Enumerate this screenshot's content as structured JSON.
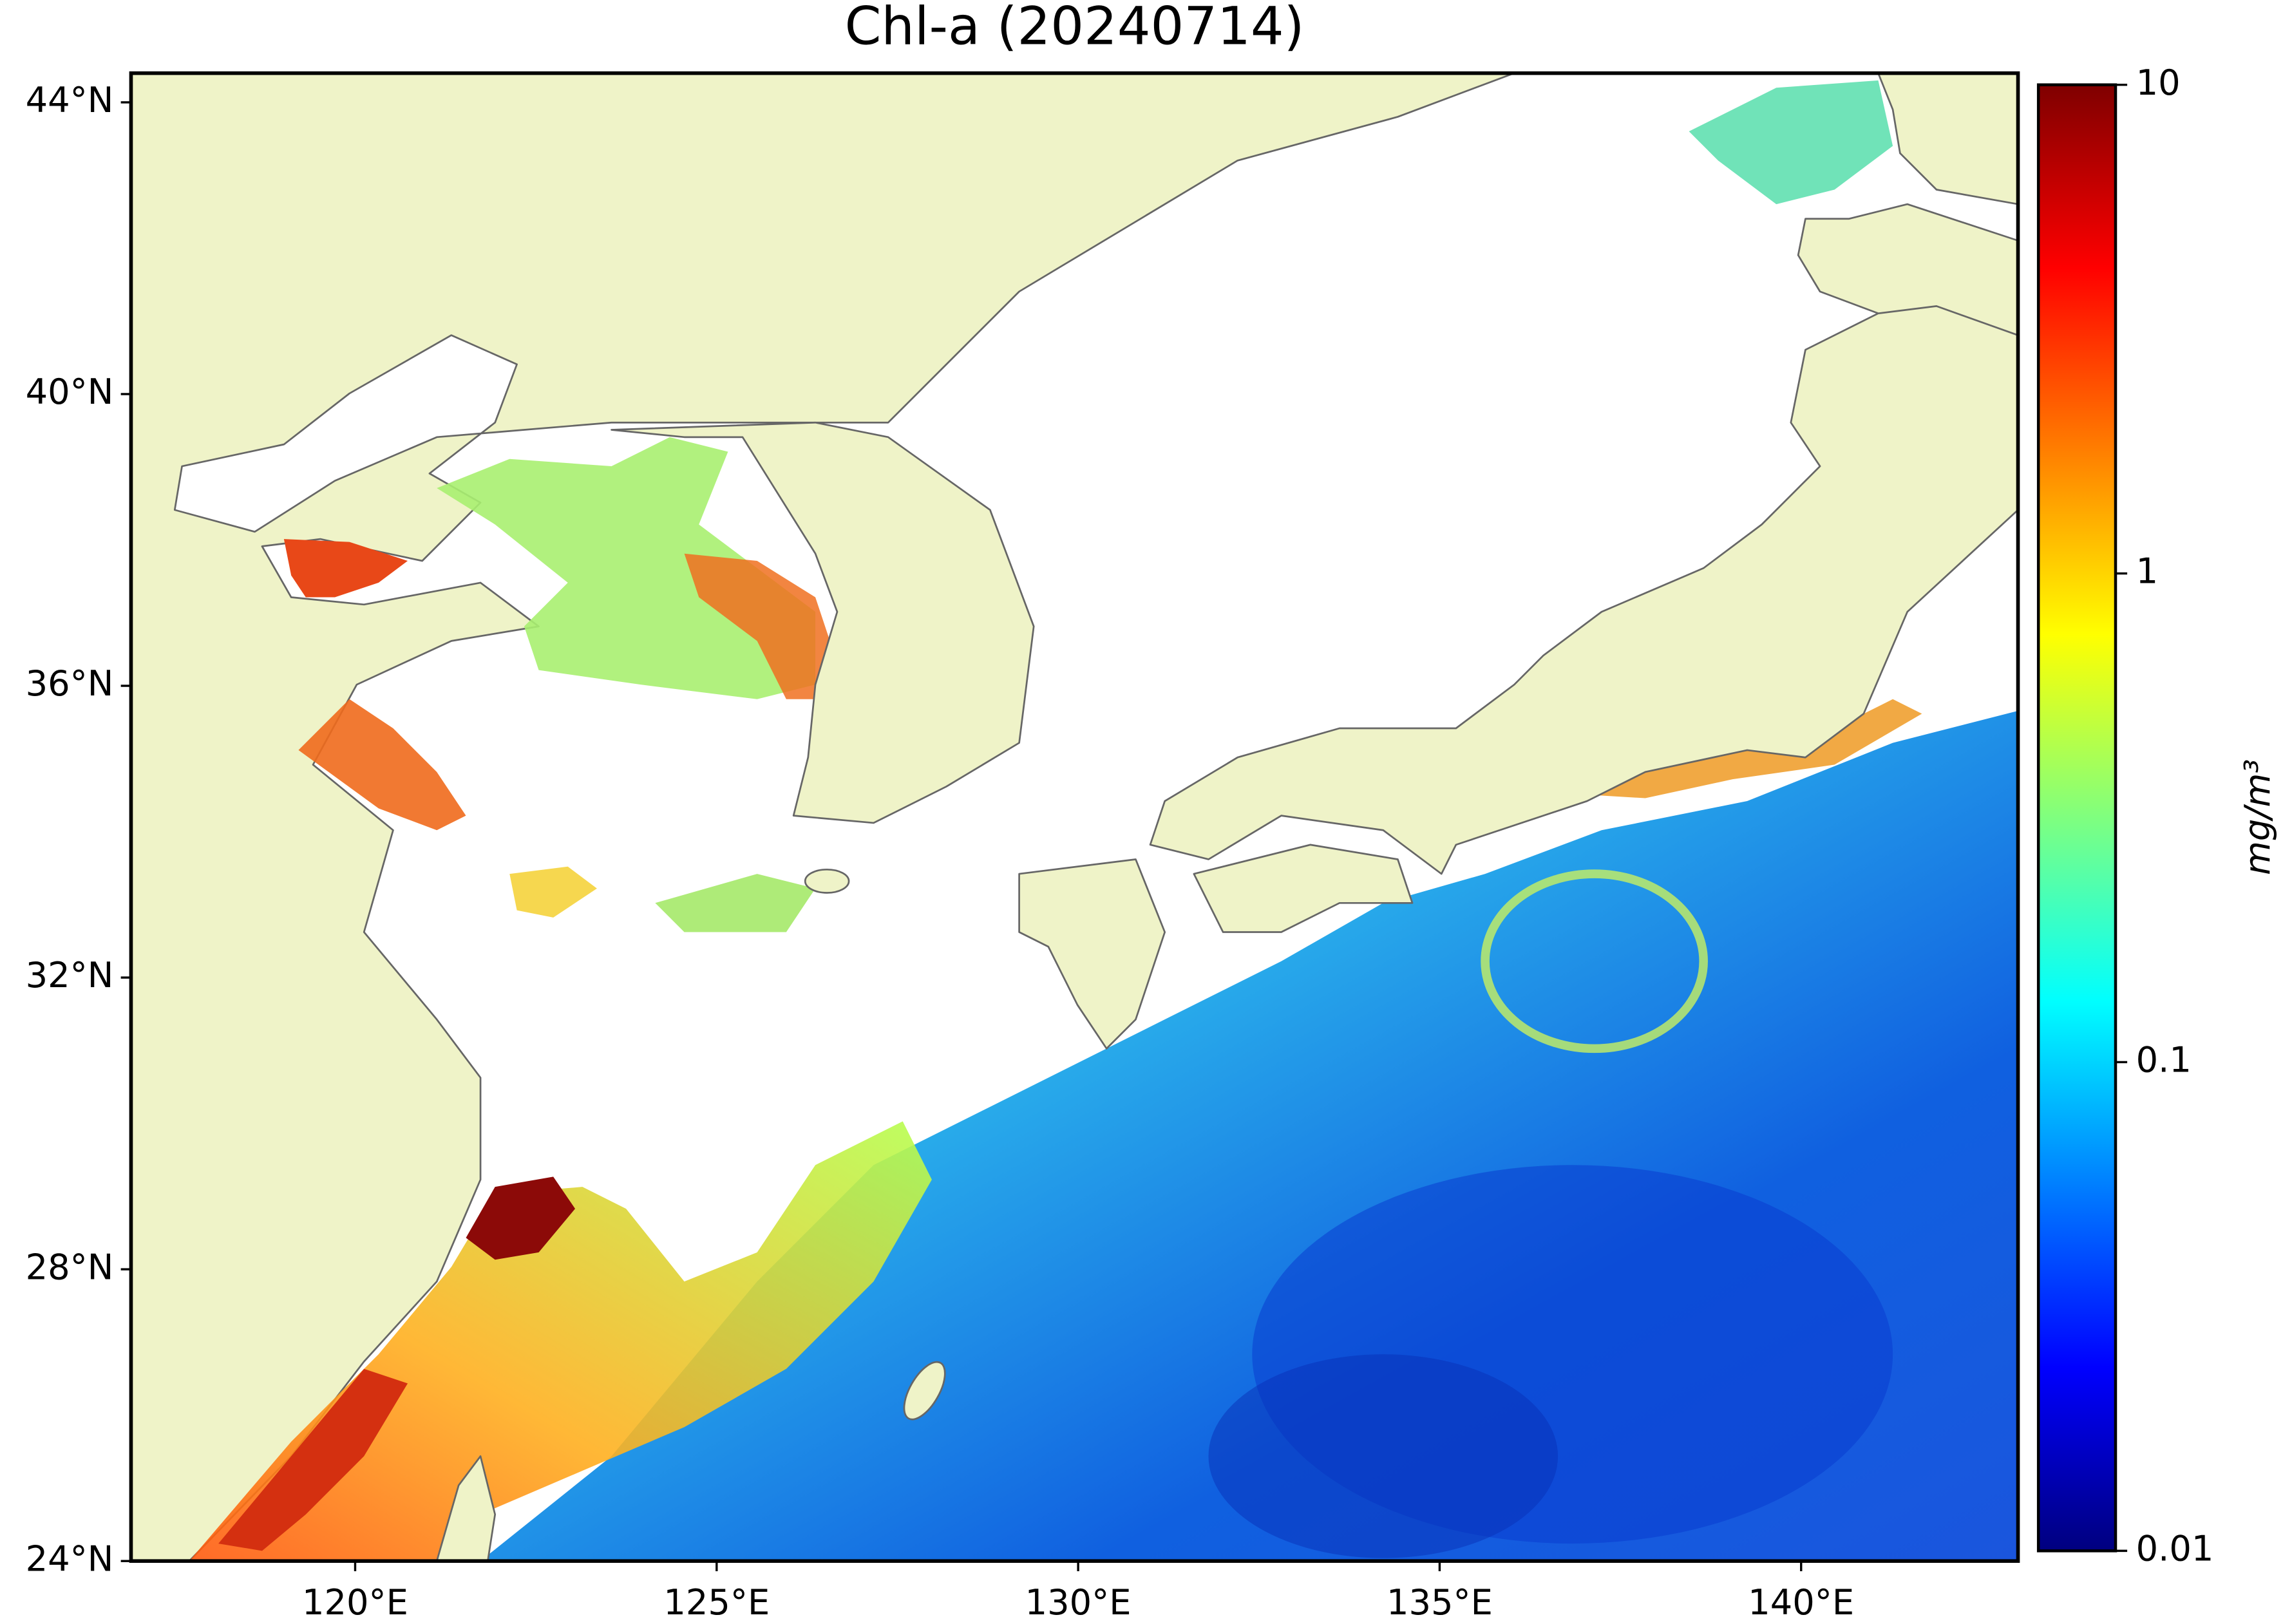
{
  "chart_data": {
    "type": "map",
    "title": "Chl-a (20240714)",
    "xlim": [
      116.9,
      143.0
    ],
    "xticks": [
      {
        "value": 120,
        "label": "120°E"
      },
      {
        "value": 125,
        "label": "125°E"
      },
      {
        "value": 130,
        "label": "130°E"
      },
      {
        "value": 135,
        "label": "135°E"
      },
      {
        "value": 140,
        "label": "140°E"
      }
    ],
    "ylim": [
      24,
      44.4
    ],
    "yticks": [
      {
        "value": 24,
        "label": "24°N"
      },
      {
        "value": 28,
        "label": "28°N"
      },
      {
        "value": 32,
        "label": "32°N"
      },
      {
        "value": 36,
        "label": "36°N"
      },
      {
        "value": 40,
        "label": "40°N"
      },
      {
        "value": 44,
        "label": "44°N"
      }
    ],
    "colorbar": {
      "label": "mg/m³",
      "lim": [
        0.01,
        10
      ],
      "ticks": [
        0.01,
        0.1,
        1,
        10
      ],
      "log_scale": true,
      "colors": [
        "#00007f",
        "#0000ff",
        "#007fff",
        "#00ffff",
        "#7fff7f",
        "#ffff00",
        "#ff7f00",
        "#ff0000",
        "#7f0000"
      ]
    }
  }
}
